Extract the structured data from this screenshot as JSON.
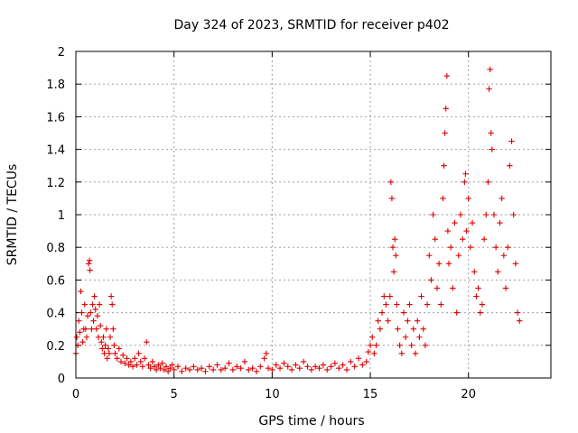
{
  "chart_data": {
    "type": "scatter",
    "title": "Day 324 of 2023, SRMTID for receiver p402",
    "xlabel": "GPS time / hours",
    "ylabel": "SRMTID / TECUs",
    "xlim": [
      0,
      24.2
    ],
    "ylim": [
      0,
      2
    ],
    "x_ticks": [
      0,
      5,
      10,
      15,
      20
    ],
    "x_tick_labels": [
      "0",
      "5",
      "10",
      "15",
      "20"
    ],
    "y_ticks": [
      0,
      0.2,
      0.4,
      0.6,
      0.8,
      1,
      1.2,
      1.4,
      1.6,
      1.8,
      2
    ],
    "y_tick_labels": [
      "0",
      "0.2",
      "0.4",
      "0.6",
      "0.8",
      "1",
      "1.2",
      "1.4",
      "1.6",
      "1.8",
      "2"
    ],
    "grid": true,
    "marker": "+",
    "color": "#e00000",
    "series": [
      {
        "name": "SRMTID",
        "points": [
          [
            0.0,
            0.15
          ],
          [
            0.05,
            0.25
          ],
          [
            0.1,
            0.2
          ],
          [
            0.15,
            0.35
          ],
          [
            0.2,
            0.28
          ],
          [
            0.25,
            0.53
          ],
          [
            0.3,
            0.4
          ],
          [
            0.35,
            0.22
          ],
          [
            0.4,
            0.3
          ],
          [
            0.45,
            0.45
          ],
          [
            0.5,
            0.3
          ],
          [
            0.55,
            0.25
          ],
          [
            0.6,
            0.38
          ],
          [
            0.65,
            0.7
          ],
          [
            0.7,
            0.72
          ],
          [
            0.72,
            0.66
          ],
          [
            0.75,
            0.4
          ],
          [
            0.8,
            0.3
          ],
          [
            0.85,
            0.45
          ],
          [
            0.9,
            0.35
          ],
          [
            0.95,
            0.5
          ],
          [
            1.0,
            0.42
          ],
          [
            1.05,
            0.3
          ],
          [
            1.1,
            0.38
          ],
          [
            1.15,
            0.25
          ],
          [
            1.2,
            0.45
          ],
          [
            1.25,
            0.32
          ],
          [
            1.3,
            0.22
          ],
          [
            1.35,
            0.18
          ],
          [
            1.4,
            0.25
          ],
          [
            1.45,
            0.15
          ],
          [
            1.5,
            0.2
          ],
          [
            1.55,
            0.3
          ],
          [
            1.6,
            0.12
          ],
          [
            1.65,
            0.18
          ],
          [
            1.7,
            0.15
          ],
          [
            1.75,
            0.25
          ],
          [
            1.8,
            0.5
          ],
          [
            1.85,
            0.45
          ],
          [
            1.9,
            0.3
          ],
          [
            1.95,
            0.2
          ],
          [
            2.0,
            0.15
          ],
          [
            2.1,
            0.12
          ],
          [
            2.2,
            0.18
          ],
          [
            2.3,
            0.1
          ],
          [
            2.4,
            0.14
          ],
          [
            2.5,
            0.09
          ],
          [
            2.6,
            0.12
          ],
          [
            2.7,
            0.08
          ],
          [
            2.8,
            0.1
          ],
          [
            2.9,
            0.07
          ],
          [
            3.0,
            0.12
          ],
          [
            3.1,
            0.08
          ],
          [
            3.2,
            0.15
          ],
          [
            3.3,
            0.1
          ],
          [
            3.4,
            0.07
          ],
          [
            3.5,
            0.12
          ],
          [
            3.6,
            0.22
          ],
          [
            3.7,
            0.08
          ],
          [
            3.8,
            0.06
          ],
          [
            3.9,
            0.1
          ],
          [
            4.0,
            0.07
          ],
          [
            4.1,
            0.05
          ],
          [
            4.2,
            0.08
          ],
          [
            4.3,
            0.06
          ],
          [
            4.4,
            0.09
          ],
          [
            4.5,
            0.05
          ],
          [
            4.6,
            0.07
          ],
          [
            4.7,
            0.04
          ],
          [
            4.8,
            0.06
          ],
          [
            4.9,
            0.08
          ],
          [
            5.0,
            0.05
          ],
          [
            5.2,
            0.07
          ],
          [
            5.4,
            0.04
          ],
          [
            5.6,
            0.06
          ],
          [
            5.8,
            0.05
          ],
          [
            6.0,
            0.07
          ],
          [
            6.2,
            0.05
          ],
          [
            6.4,
            0.06
          ],
          [
            6.6,
            0.04
          ],
          [
            6.8,
            0.07
          ],
          [
            7.0,
            0.05
          ],
          [
            7.2,
            0.08
          ],
          [
            7.4,
            0.05
          ],
          [
            7.6,
            0.06
          ],
          [
            7.8,
            0.09
          ],
          [
            8.0,
            0.05
          ],
          [
            8.2,
            0.07
          ],
          [
            8.4,
            0.06
          ],
          [
            8.6,
            0.1
          ],
          [
            8.8,
            0.05
          ],
          [
            9.0,
            0.06
          ],
          [
            9.2,
            0.04
          ],
          [
            9.4,
            0.07
          ],
          [
            9.6,
            0.12
          ],
          [
            9.7,
            0.15
          ],
          [
            9.8,
            0.06
          ],
          [
            10.0,
            0.05
          ],
          [
            10.2,
            0.08
          ],
          [
            10.4,
            0.06
          ],
          [
            10.6,
            0.09
          ],
          [
            10.8,
            0.07
          ],
          [
            11.0,
            0.05
          ],
          [
            11.2,
            0.08
          ],
          [
            11.4,
            0.06
          ],
          [
            11.6,
            0.1
          ],
          [
            11.8,
            0.07
          ],
          [
            12.0,
            0.05
          ],
          [
            12.2,
            0.07
          ],
          [
            12.4,
            0.06
          ],
          [
            12.6,
            0.08
          ],
          [
            12.8,
            0.05
          ],
          [
            13.0,
            0.07
          ],
          [
            13.2,
            0.09
          ],
          [
            13.4,
            0.06
          ],
          [
            13.6,
            0.08
          ],
          [
            13.8,
            0.05
          ],
          [
            14.0,
            0.1
          ],
          [
            14.2,
            0.07
          ],
          [
            14.4,
            0.12
          ],
          [
            14.6,
            0.08
          ],
          [
            14.8,
            0.1
          ],
          [
            14.9,
            0.16
          ],
          [
            15.0,
            0.2
          ],
          [
            15.1,
            0.25
          ],
          [
            15.2,
            0.15
          ],
          [
            15.3,
            0.2
          ],
          [
            15.4,
            0.35
          ],
          [
            15.5,
            0.3
          ],
          [
            15.6,
            0.4
          ],
          [
            15.7,
            0.5
          ],
          [
            15.8,
            0.45
          ],
          [
            15.9,
            0.35
          ],
          [
            16.0,
            0.5
          ],
          [
            16.05,
            1.2
          ],
          [
            16.1,
            1.1
          ],
          [
            16.15,
            0.8
          ],
          [
            16.2,
            0.65
          ],
          [
            16.25,
            0.85
          ],
          [
            16.3,
            0.75
          ],
          [
            16.35,
            0.45
          ],
          [
            16.4,
            0.3
          ],
          [
            16.5,
            0.2
          ],
          [
            16.6,
            0.15
          ],
          [
            16.7,
            0.4
          ],
          [
            16.8,
            0.25
          ],
          [
            16.9,
            0.35
          ],
          [
            17.0,
            0.45
          ],
          [
            17.1,
            0.2
          ],
          [
            17.2,
            0.3
          ],
          [
            17.3,
            0.15
          ],
          [
            17.4,
            0.35
          ],
          [
            17.5,
            0.25
          ],
          [
            17.6,
            0.5
          ],
          [
            17.7,
            0.3
          ],
          [
            17.8,
            0.2
          ],
          [
            17.9,
            0.45
          ],
          [
            18.0,
            0.75
          ],
          [
            18.1,
            0.6
          ],
          [
            18.2,
            1.0
          ],
          [
            18.3,
            0.85
          ],
          [
            18.4,
            0.55
          ],
          [
            18.5,
            0.7
          ],
          [
            18.6,
            0.45
          ],
          [
            18.7,
            1.1
          ],
          [
            18.75,
            1.3
          ],
          [
            18.8,
            1.5
          ],
          [
            18.85,
            1.65
          ],
          [
            18.9,
            1.85
          ],
          [
            18.95,
            0.9
          ],
          [
            19.0,
            0.7
          ],
          [
            19.1,
            0.8
          ],
          [
            19.2,
            0.55
          ],
          [
            19.3,
            0.95
          ],
          [
            19.4,
            0.4
          ],
          [
            19.5,
            0.75
          ],
          [
            19.6,
            1.0
          ],
          [
            19.7,
            0.85
          ],
          [
            19.8,
            1.2
          ],
          [
            19.85,
            1.25
          ],
          [
            19.9,
            0.9
          ],
          [
            20.0,
            1.1
          ],
          [
            20.1,
            0.8
          ],
          [
            20.2,
            0.95
          ],
          [
            20.3,
            0.65
          ],
          [
            20.4,
            0.5
          ],
          [
            20.5,
            0.55
          ],
          [
            20.6,
            0.4
          ],
          [
            20.7,
            0.45
          ],
          [
            20.8,
            0.85
          ],
          [
            20.9,
            1.0
          ],
          [
            21.0,
            1.2
          ],
          [
            21.05,
            1.77
          ],
          [
            21.1,
            1.89
          ],
          [
            21.15,
            1.5
          ],
          [
            21.2,
            1.4
          ],
          [
            21.3,
            1.0
          ],
          [
            21.4,
            0.8
          ],
          [
            21.5,
            0.65
          ],
          [
            21.6,
            0.95
          ],
          [
            21.7,
            1.1
          ],
          [
            21.8,
            0.75
          ],
          [
            21.9,
            0.55
          ],
          [
            22.0,
            0.8
          ],
          [
            22.1,
            1.3
          ],
          [
            22.2,
            1.45
          ],
          [
            22.3,
            1.0
          ],
          [
            22.4,
            0.7
          ],
          [
            22.5,
            0.4
          ],
          [
            22.6,
            0.35
          ]
        ]
      }
    ]
  }
}
